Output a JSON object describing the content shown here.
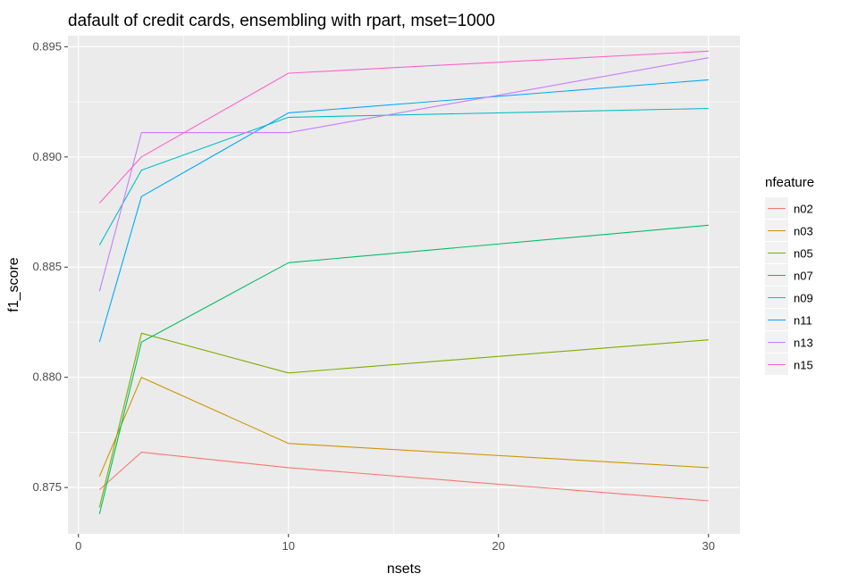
{
  "chart_data": {
    "type": "line",
    "title": "dafault of credit cards, ensembling with rpart, mset=1000",
    "xlabel": "nsets",
    "ylabel": "f1_score",
    "x": [
      1,
      3,
      10,
      30
    ],
    "xlim": [
      -0.5,
      31.5
    ],
    "ylim": [
      0.8729,
      0.8955
    ],
    "xticks": [
      0,
      10,
      20,
      30
    ],
    "xtick_labels": [
      "0",
      "10",
      "20",
      "30"
    ],
    "yticks": [
      0.875,
      0.88,
      0.885,
      0.89,
      0.895
    ],
    "ytick_labels": [
      "0.875",
      "0.880",
      "0.885",
      "0.890",
      "0.895"
    ],
    "grid": true,
    "legend_title": "nfeature",
    "legend_position": "right",
    "series": [
      {
        "name": "n02",
        "color": "#F8766D",
        "values": [
          0.8749,
          0.8766,
          0.8759,
          0.8744
        ]
      },
      {
        "name": "n03",
        "color": "#CD9600",
        "values": [
          0.8755,
          0.88,
          0.877,
          0.8759
        ]
      },
      {
        "name": "n05",
        "color": "#7CAE00",
        "values": [
          0.8741,
          0.882,
          0.8802,
          0.8817
        ]
      },
      {
        "name": "n07",
        "color": "#00BE67",
        "values": [
          0.8738,
          0.8816,
          0.8852,
          0.8869
        ]
      },
      {
        "name": "n09",
        "color": "#00BFC4",
        "values": [
          0.886,
          0.8894,
          0.8918,
          0.8922
        ]
      },
      {
        "name": "n11",
        "color": "#00A9FF",
        "values": [
          0.8816,
          0.8882,
          0.892,
          0.8935
        ]
      },
      {
        "name": "n13",
        "color": "#C77CFF",
        "values": [
          0.8839,
          0.8911,
          0.8911,
          0.8945
        ]
      },
      {
        "name": "n15",
        "color": "#FF61CC",
        "values": [
          0.8879,
          0.89,
          0.8938,
          0.8948
        ]
      }
    ]
  }
}
